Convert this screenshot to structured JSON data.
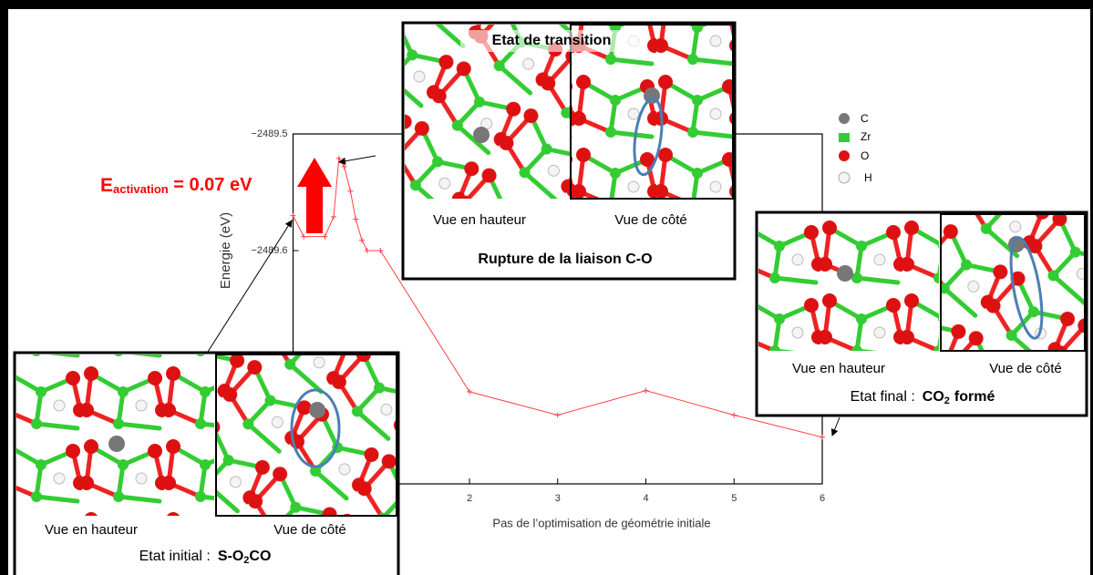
{
  "chart_data": {
    "type": "line",
    "y_label": "Energie (eV)",
    "x_label": "Pas de l’optimisation de géométrie initiale",
    "x": [
      0,
      0.12,
      0.36,
      0.46,
      0.52,
      0.58,
      0.65,
      0.71,
      0.78,
      0.84,
      0.99,
      2,
      3,
      4,
      5,
      6
    ],
    "series": [
      {
        "color": "#ff4040",
        "values": [
          -2489.57,
          -2489.588,
          -2489.588,
          -2489.571,
          -2489.521,
          -2489.528,
          -2489.549,
          -2489.573,
          -2489.591,
          -2489.6,
          -2489.6,
          -2489.721,
          -2489.741,
          -2489.72,
          -2489.741,
          -2489.76
        ]
      }
    ],
    "xlim": [
      0,
      6
    ],
    "xticks": [
      2,
      3,
      4,
      5,
      6
    ],
    "ylim": [
      -2489.8,
      -2489.5
    ],
    "yticks": [
      {
        "value": -2489.5,
        "label": "−2489.5"
      },
      {
        "value": -2489.6,
        "label": "−2489.6"
      }
    ],
    "annotation": {
      "text": "E",
      "sub": "activation",
      "rest": " = 0.07 eV",
      "color": "#ff0000"
    }
  },
  "legend": [
    "C",
    "Zr",
    "O",
    "H"
  ],
  "panels": [
    {
      "label_left": "Vue en hauteur",
      "label_right": "Vue de côté",
      "caption": {
        "text": "Etat initial :",
        "bold": "S-O",
        "sub": "2",
        "bold_end": "CO"
      }
    },
    {
      "title": "Etat de transition",
      "label_left": "Vue en hauteur",
      "label_right": "Vue de côté",
      "caption": {
        "bold": "Rupture de la liaison C-O"
      }
    },
    {
      "label_left": "Vue en hauteur",
      "label_right": "Vue de côté",
      "caption": {
        "text": "Etat final :",
        "bold": "CO",
        "sub": "2",
        "bold_end": "formé"
      }
    }
  ]
}
